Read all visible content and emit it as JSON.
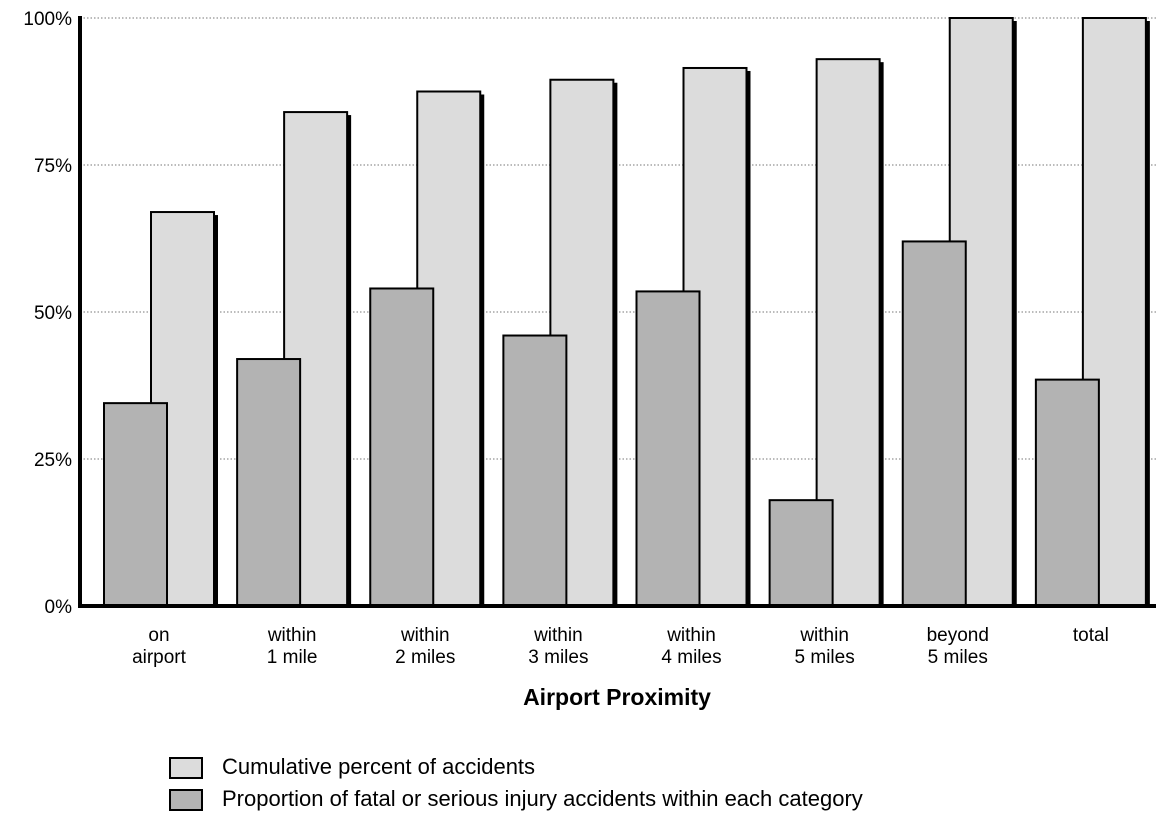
{
  "chart_data": {
    "type": "bar",
    "title": "",
    "xlabel": "Airport Proximity",
    "ylabel": "",
    "ylim": [
      0,
      100
    ],
    "yticks": [
      0,
      25,
      50,
      75,
      100
    ],
    "ytick_labels": [
      "0%",
      "25%",
      "50%",
      "75%",
      "100%"
    ],
    "grid": "horizontal dotted",
    "categories": [
      [
        "on",
        "airport"
      ],
      [
        "within",
        "1 mile"
      ],
      [
        "within",
        "2 miles"
      ],
      [
        "within",
        "3 miles"
      ],
      [
        "within",
        "4 miles"
      ],
      [
        "within",
        "5 miles"
      ],
      [
        "beyond",
        "5 miles"
      ],
      [
        "total"
      ]
    ],
    "series": [
      {
        "name": "Proportion of fatal or serious injury accidents within each category",
        "color": "#b3b3b3",
        "values": [
          34.5,
          42,
          54,
          46,
          53.5,
          18,
          62,
          38.5
        ]
      },
      {
        "name": "Cumulative percent of accidents",
        "color": "#dcdcdc",
        "values": [
          67,
          84,
          87.5,
          89.5,
          91.5,
          93,
          100,
          100
        ]
      }
    ],
    "legend": {
      "placement": "bottom-center",
      "entries": [
        {
          "label": "Cumulative percent of accidents",
          "color": "#dcdcdc"
        },
        {
          "label": "Proportion of fatal or serious injury accidents within each category",
          "color": "#b3b3b3"
        }
      ]
    }
  }
}
